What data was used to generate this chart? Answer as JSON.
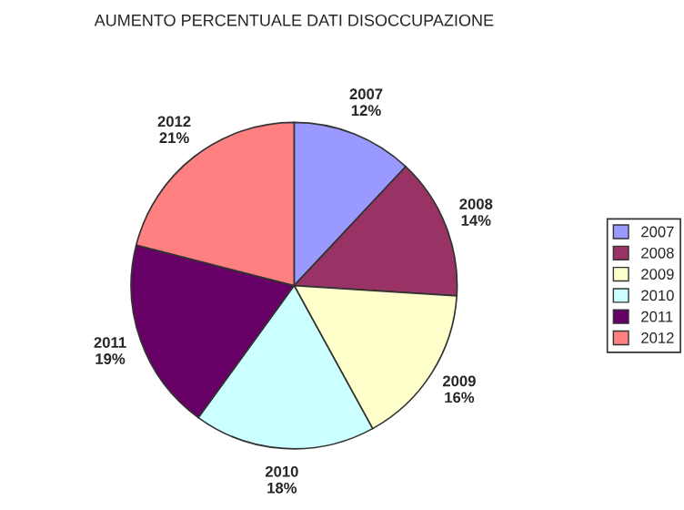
{
  "chart_data": {
    "type": "pie",
    "title": "AUMENTO PERCENTUALE DATI DISOCCUPAZIONE",
    "categories": [
      "2007",
      "2008",
      "2009",
      "2010",
      "2011",
      "2012"
    ],
    "values": [
      12,
      14,
      16,
      18,
      19,
      21
    ],
    "value_labels": [
      "12%",
      "14%",
      "16%",
      "18%",
      "19%",
      "21%"
    ],
    "colors": [
      "#9999ff",
      "#993366",
      "#ffffcc",
      "#ccffff",
      "#660066",
      "#ff8080"
    ],
    "legend": "right"
  }
}
